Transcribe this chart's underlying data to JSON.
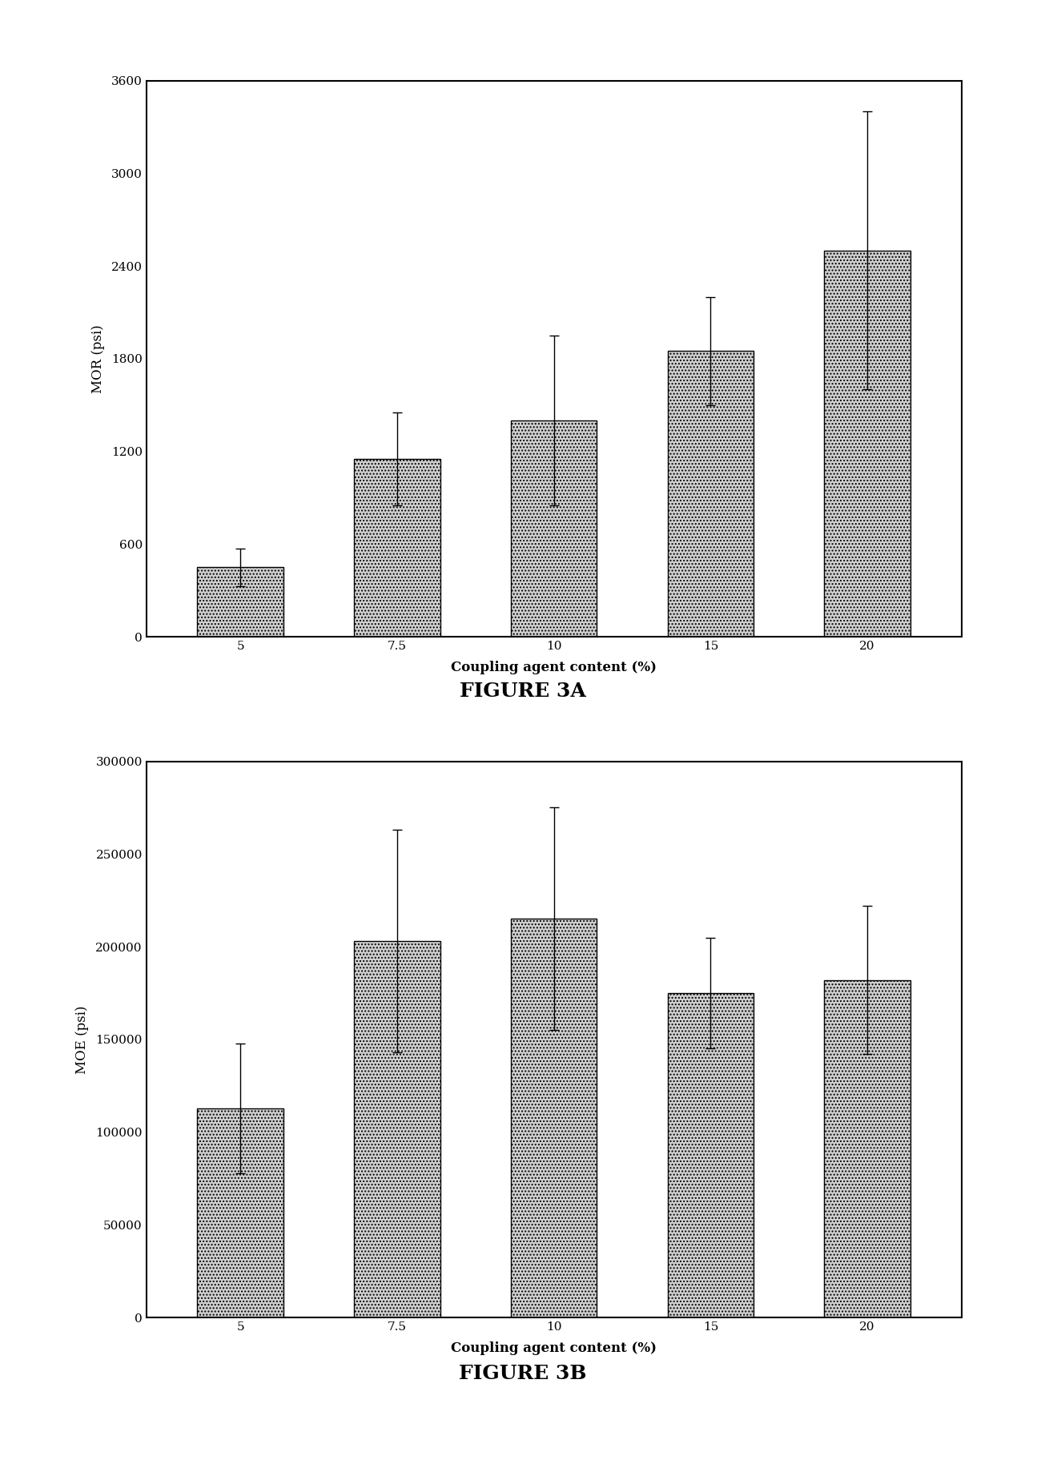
{
  "fig3a": {
    "categories": [
      "5",
      "7.5",
      "10",
      "15",
      "20"
    ],
    "values": [
      450,
      1150,
      1400,
      1850,
      2500
    ],
    "errors": [
      120,
      300,
      550,
      350,
      900
    ],
    "ylabel": "MOR (psi)",
    "xlabel": "Coupling agent content (%)",
    "title": "FIGURE 3A",
    "ylim": [
      0,
      3600
    ],
    "yticks": [
      0,
      600,
      1200,
      1800,
      2400,
      3000,
      3600
    ]
  },
  "fig3b": {
    "categories": [
      "5",
      "7.5",
      "10",
      "15",
      "20"
    ],
    "values": [
      113000,
      203000,
      215000,
      175000,
      182000
    ],
    "errors": [
      35000,
      60000,
      60000,
      30000,
      40000
    ],
    "ylabel": "MOE (psi)",
    "xlabel": "Coupling agent content (%)",
    "title": "FIGURE 3B",
    "ylim": [
      0,
      300000
    ],
    "yticks": [
      0,
      50000,
      100000,
      150000,
      200000,
      250000,
      300000
    ]
  },
  "bar_color": "#d0d0d0",
  "bar_hatch": "....",
  "bar_edgecolor": "#000000",
  "background_color": "#ffffff",
  "axis_label_fontsize": 12,
  "tick_fontsize": 11,
  "caption_fontsize": 18,
  "bar_width": 0.55
}
